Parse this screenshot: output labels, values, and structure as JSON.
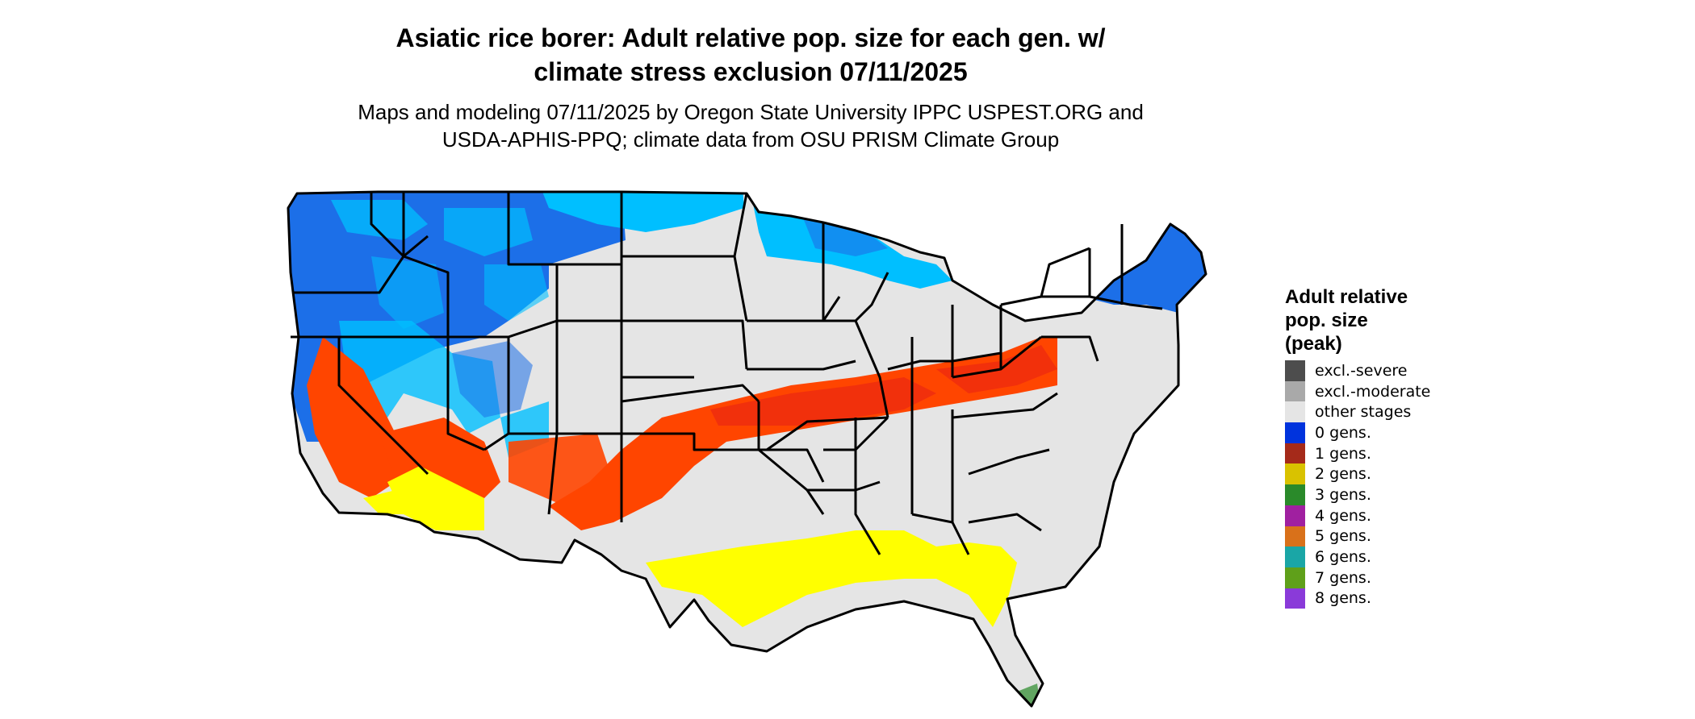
{
  "title": {
    "line1": "Asiatic rice borer: Adult relative pop. size for each gen. w/",
    "line2": "climate stress exclusion 07/11/2025"
  },
  "subtitle": {
    "line1": "Maps and modeling 07/11/2025 by Oregon State University IPPC USPEST.ORG and",
    "line2": "USDA-APHIS-PPQ; climate data from OSU PRISM Climate Group"
  },
  "legend": {
    "title_lines": [
      "Adult relative",
      "pop. size",
      "(peak)"
    ],
    "items": [
      {
        "label": "excl.-severe",
        "color": "#4d4d4d"
      },
      {
        "label": "excl.-moderate",
        "color": "#a9a9a9"
      },
      {
        "label": "other stages",
        "color": "#e5e5e5"
      },
      {
        "label": "0 gens.",
        "color": "#0033dd"
      },
      {
        "label": "1 gens.",
        "color": "#a52a1a"
      },
      {
        "label": "2 gens.",
        "color": "#d9c200"
      },
      {
        "label": "3 gens.",
        "color": "#2a8a2a"
      },
      {
        "label": "4 gens.",
        "color": "#a020a0"
      },
      {
        "label": "5 gens.",
        "color": "#d9711a"
      },
      {
        "label": "6 gens.",
        "color": "#1aa6a6"
      },
      {
        "label": "7 gens.",
        "color": "#5fa01a"
      },
      {
        "label": "8 gens.",
        "color": "#8a3ad9"
      }
    ]
  },
  "map": {
    "region": "Contiguous United States",
    "colors": {
      "blue_light": "#00bfff",
      "blue_dark": "#1c6fe8",
      "orange": "#ff4500",
      "red": "#ee2a0f",
      "yellow": "#ffff00",
      "gray": "#e5e5e5",
      "green": "#2a8a2a",
      "border": "#000000"
    }
  }
}
